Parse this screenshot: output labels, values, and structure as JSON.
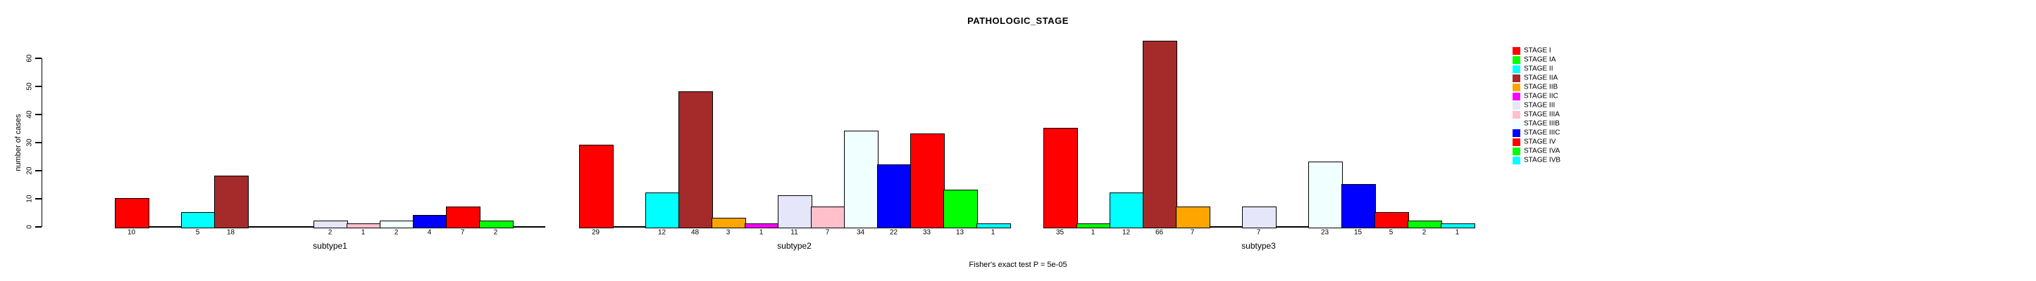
{
  "title": "PATHOLOGIC_STAGE",
  "y_axis": {
    "label": "number of cases"
  },
  "footer": "Fisher's exact test P = 5e-05",
  "chart_data": {
    "type": "bar",
    "title": "PATHOLOGIC_STAGE",
    "xlabel": "",
    "ylabel": "number of cases",
    "ylim": [
      0,
      60
    ],
    "yticks": [
      0,
      10,
      20,
      30,
      40,
      50,
      60
    ],
    "grid": false,
    "legend_position": "right",
    "bar_value_labels_shown": true,
    "categories": [
      "STAGE I",
      "STAGE IA",
      "STAGE II",
      "STAGE IIA",
      "STAGE IIB",
      "STAGE IIC",
      "STAGE III",
      "STAGE IIIA",
      "STAGE IIIB",
      "STAGE IIIC",
      "STAGE IV",
      "STAGE IVA",
      "STAGE IVB"
    ],
    "colors": [
      "#FF0000",
      "#00FF00",
      "#00FFFF",
      "#A52A2A",
      "#FFA500",
      "#FF00FF",
      "#E6E6FA",
      "#FFC0CB",
      "#F0FFFF",
      "#0000FF",
      "#FF0000",
      "#00FF00",
      "#00FFFF"
    ],
    "series": [
      {
        "name": "subtype1",
        "values": [
          10,
          0,
          5,
          18,
          0,
          0,
          2,
          1,
          2,
          4,
          7,
          2,
          0
        ]
      },
      {
        "name": "subtype2",
        "values": [
          29,
          0,
          12,
          48,
          3,
          1,
          11,
          7,
          34,
          22,
          33,
          13,
          1
        ]
      },
      {
        "name": "subtype3",
        "values": [
          35,
          1,
          12,
          66,
          7,
          0,
          7,
          0,
          23,
          15,
          5,
          2,
          1
        ]
      }
    ],
    "annotation": "Fisher's exact test P = 5e-05"
  }
}
